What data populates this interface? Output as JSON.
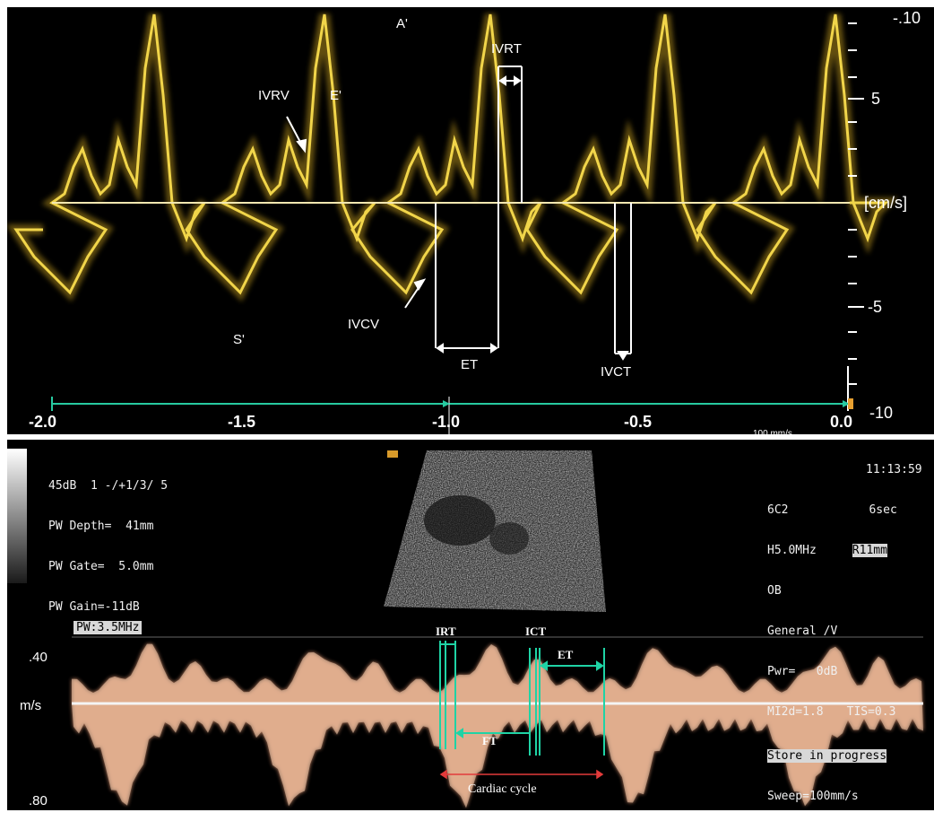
{
  "top_panel": {
    "labels": {
      "a_prime": "A'",
      "ivrt": "IVRT",
      "ivrv": "IVRV",
      "e_prime": "E'",
      "s_prime": "S'",
      "ivcv": "IVCV",
      "et": "ET",
      "ivct": "IVCT"
    },
    "scale": {
      "top": "-.10",
      "plus5": "5",
      "unit": "[cm/s]",
      "minus5": "-5",
      "bottom": "-10"
    },
    "time_axis": [
      "-2.0",
      "-1.5",
      "-1.0",
      "-0.5",
      "0.0"
    ],
    "sweep_note": "100 mm/s",
    "trace_color": "#e8c93a"
  },
  "bottom_panel": {
    "info_left": [
      "45dB  1 -/+1/3/ 5",
      "PW Depth=  41mm",
      "PW Gate=  5.0mm",
      "PW Gain=-11dB"
    ],
    "info_right": {
      "time": "11:13:59",
      "probe": "6C2",
      "sec": "6sec",
      "freq": "H5.0MHz",
      "r": "R11mm",
      "preset1": "OB",
      "preset2": "General /V",
      "pwr": "Pwr=   0dB",
      "mi": "MI2d=1.8",
      "tis": "TIS=0.3",
      "store": "Store in progress",
      "sweep": "Sweep=100mm/s"
    },
    "pw_label": "PW:3.5MHz",
    "scale": {
      "top": ".40",
      "unit": "m/s",
      "bottom": ".80"
    },
    "measurements": {
      "irt": "IRT",
      "ict": "ICT",
      "et": "ET",
      "ft": "FT",
      "cycle": "Cardiac cycle"
    },
    "doppler_color": "#f2b58e",
    "marker_color": "#1fd3a5",
    "cycle_color": "#e23b3b"
  }
}
